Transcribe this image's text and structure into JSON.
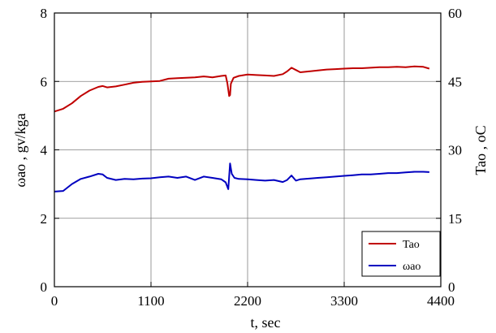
{
  "chart_data": {
    "type": "line",
    "title": "",
    "xlabel": "t,  sec",
    "ylabel_left": "ωao , gv/kga",
    "ylabel_right": "Tao , oC",
    "xlim": [
      0,
      4400
    ],
    "ylim_left": [
      0,
      8
    ],
    "ylim_right": [
      0,
      60
    ],
    "x_ticks": [
      "0",
      "1100",
      "2200",
      "3300",
      "4400"
    ],
    "y_left_ticks": [
      "0",
      "2",
      "4",
      "6",
      "8"
    ],
    "y_right_ticks": [
      "0",
      "15",
      "30",
      "45",
      "60"
    ],
    "grid": true,
    "legend_position": "lower-right",
    "series": [
      {
        "name": "Tao",
        "axis": "right",
        "color": "#c00000",
        "points": [
          [
            0,
            38.4
          ],
          [
            100,
            39.0
          ],
          [
            200,
            40.2
          ],
          [
            300,
            41.8
          ],
          [
            400,
            43.0
          ],
          [
            500,
            43.8
          ],
          [
            550,
            44.0
          ],
          [
            600,
            43.7
          ],
          [
            700,
            43.9
          ],
          [
            800,
            44.3
          ],
          [
            900,
            44.7
          ],
          [
            1000,
            44.9
          ],
          [
            1100,
            45.0
          ],
          [
            1200,
            45.1
          ],
          [
            1300,
            45.6
          ],
          [
            1400,
            45.7
          ],
          [
            1500,
            45.8
          ],
          [
            1600,
            45.9
          ],
          [
            1700,
            46.1
          ],
          [
            1800,
            45.9
          ],
          [
            1900,
            46.2
          ],
          [
            1950,
            46.3
          ],
          [
            1970,
            44.6
          ],
          [
            1990,
            41.8
          ],
          [
            2000,
            42.0
          ],
          [
            2010,
            44.5
          ],
          [
            2040,
            45.8
          ],
          [
            2100,
            46.2
          ],
          [
            2200,
            46.5
          ],
          [
            2300,
            46.4
          ],
          [
            2400,
            46.3
          ],
          [
            2500,
            46.2
          ],
          [
            2600,
            46.6
          ],
          [
            2650,
            47.2
          ],
          [
            2700,
            48.0
          ],
          [
            2750,
            47.5
          ],
          [
            2800,
            47.0
          ],
          [
            2900,
            47.2
          ],
          [
            3000,
            47.4
          ],
          [
            3100,
            47.6
          ],
          [
            3200,
            47.7
          ],
          [
            3300,
            47.8
          ],
          [
            3400,
            47.9
          ],
          [
            3500,
            47.9
          ],
          [
            3600,
            48.0
          ],
          [
            3700,
            48.1
          ],
          [
            3800,
            48.1
          ],
          [
            3900,
            48.2
          ],
          [
            4000,
            48.1
          ],
          [
            4100,
            48.3
          ],
          [
            4200,
            48.2
          ],
          [
            4270,
            47.8
          ]
        ]
      },
      {
        "name": "ωao",
        "axis": "left",
        "color": "#0000c0",
        "points": [
          [
            0,
            2.78
          ],
          [
            100,
            2.8
          ],
          [
            200,
            3.0
          ],
          [
            300,
            3.15
          ],
          [
            400,
            3.22
          ],
          [
            500,
            3.3
          ],
          [
            550,
            3.28
          ],
          [
            600,
            3.18
          ],
          [
            700,
            3.12
          ],
          [
            800,
            3.15
          ],
          [
            900,
            3.14
          ],
          [
            1000,
            3.16
          ],
          [
            1100,
            3.17
          ],
          [
            1200,
            3.2
          ],
          [
            1300,
            3.22
          ],
          [
            1400,
            3.18
          ],
          [
            1500,
            3.22
          ],
          [
            1600,
            3.12
          ],
          [
            1700,
            3.22
          ],
          [
            1800,
            3.18
          ],
          [
            1900,
            3.14
          ],
          [
            1950,
            3.05
          ],
          [
            1980,
            2.85
          ],
          [
            2000,
            3.6
          ],
          [
            2020,
            3.3
          ],
          [
            2050,
            3.18
          ],
          [
            2100,
            3.15
          ],
          [
            2200,
            3.14
          ],
          [
            2300,
            3.12
          ],
          [
            2400,
            3.1
          ],
          [
            2500,
            3.12
          ],
          [
            2600,
            3.06
          ],
          [
            2650,
            3.12
          ],
          [
            2700,
            3.25
          ],
          [
            2750,
            3.1
          ],
          [
            2800,
            3.14
          ],
          [
            2900,
            3.16
          ],
          [
            3000,
            3.18
          ],
          [
            3100,
            3.2
          ],
          [
            3200,
            3.22
          ],
          [
            3300,
            3.24
          ],
          [
            3400,
            3.26
          ],
          [
            3500,
            3.28
          ],
          [
            3600,
            3.28
          ],
          [
            3700,
            3.3
          ],
          [
            3800,
            3.32
          ],
          [
            3900,
            3.32
          ],
          [
            4000,
            3.34
          ],
          [
            4100,
            3.36
          ],
          [
            4200,
            3.36
          ],
          [
            4270,
            3.35
          ]
        ]
      }
    ]
  }
}
